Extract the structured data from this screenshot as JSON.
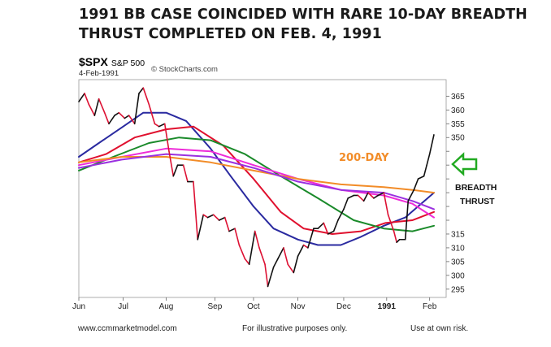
{
  "headline": {
    "line1": "1991 BB CASE COINCIDED WITH RARE 10-DAY BREADTH",
    "line2": "THRUST COMPLETED ON FEB. 4, 1991"
  },
  "chart_header": {
    "symbol": "$SPX",
    "name": "S&P 500",
    "credit": "© StockCharts.com",
    "date": "4-Feb-1991"
  },
  "annotations": {
    "ma200_label": "200-DAY",
    "breadth_line1": "BREADTH",
    "breadth_line2": "THRUST"
  },
  "footer": {
    "website": "www.ccmmarketmodel.com",
    "disclaimer": "For illustrative purposes only.",
    "risk": "Use at own risk."
  },
  "colors": {
    "price": "#111111",
    "price_down": "#dd1133",
    "ma200": "#f28c28",
    "arrow": "#22aa22",
    "annotation_orange": "#f28c28"
  },
  "chart_data": {
    "type": "line",
    "title": "$SPX S&P 500",
    "xlabel": "",
    "ylabel": "",
    "ylim": [
      292,
      371
    ],
    "y_ticks": [
      295,
      300,
      305,
      310,
      315,
      320,
      325,
      330,
      335,
      340,
      345,
      350,
      355,
      360,
      365
    ],
    "y_tick_labels": [
      "295",
      "300",
      "305",
      "310",
      "315",
      "",
      "",
      "",
      "",
      "",
      "",
      "350",
      "355",
      "360",
      "365"
    ],
    "x_domain": [
      "1990-06-01",
      "1991-02-08"
    ],
    "x_ticks": [
      {
        "label": "Jun",
        "date": "1990-06-01",
        "bold": false
      },
      {
        "label": "Jul",
        "date": "1990-07-02",
        "bold": false
      },
      {
        "label": "Aug",
        "date": "1990-08-01",
        "bold": false
      },
      {
        "label": "Sep",
        "date": "1990-09-04",
        "bold": false
      },
      {
        "label": "Oct",
        "date": "1990-10-01",
        "bold": false
      },
      {
        "label": "Nov",
        "date": "1990-11-01",
        "bold": false
      },
      {
        "label": "Dec",
        "date": "1990-12-03",
        "bold": false
      },
      {
        "label": "1991",
        "date": "1991-01-02",
        "bold": true
      },
      {
        "label": "Feb",
        "date": "1991-02-01",
        "bold": false
      }
    ],
    "price_series": {
      "name": "$SPX",
      "points": [
        [
          "1990-06-01",
          363
        ],
        [
          "1990-06-05",
          366
        ],
        [
          "1990-06-08",
          362
        ],
        [
          "1990-06-12",
          358
        ],
        [
          "1990-06-15",
          364
        ],
        [
          "1990-06-19",
          359
        ],
        [
          "1990-06-22",
          355
        ],
        [
          "1990-06-26",
          358
        ],
        [
          "1990-06-29",
          359
        ],
        [
          "1990-07-03",
          357
        ],
        [
          "1990-07-06",
          358
        ],
        [
          "1990-07-10",
          355
        ],
        [
          "1990-07-13",
          366
        ],
        [
          "1990-07-16",
          368
        ],
        [
          "1990-07-20",
          362
        ],
        [
          "1990-07-24",
          355
        ],
        [
          "1990-07-27",
          354
        ],
        [
          "1990-07-31",
          355
        ],
        [
          "1990-08-03",
          345
        ],
        [
          "1990-08-06",
          336
        ],
        [
          "1990-08-09",
          340
        ],
        [
          "1990-08-13",
          340
        ],
        [
          "1990-08-16",
          334
        ],
        [
          "1990-08-20",
          334
        ],
        [
          "1990-08-23",
          313
        ],
        [
          "1990-08-27",
          322
        ],
        [
          "1990-08-30",
          321
        ],
        [
          "1990-09-03",
          322
        ],
        [
          "1990-09-07",
          320
        ],
        [
          "1990-09-11",
          321
        ],
        [
          "1990-09-14",
          316
        ],
        [
          "1990-09-18",
          317
        ],
        [
          "1990-09-21",
          311
        ],
        [
          "1990-09-25",
          306
        ],
        [
          "1990-09-28",
          304
        ],
        [
          "1990-10-02",
          316
        ],
        [
          "1990-10-05",
          310
        ],
        [
          "1990-10-09",
          304
        ],
        [
          "1990-10-11",
          296
        ],
        [
          "1990-10-15",
          303
        ],
        [
          "1990-10-18",
          306
        ],
        [
          "1990-10-22",
          310
        ],
        [
          "1990-10-25",
          304
        ],
        [
          "1990-10-29",
          301
        ],
        [
          "1990-11-01",
          307
        ],
        [
          "1990-11-05",
          311
        ],
        [
          "1990-11-08",
          310
        ],
        [
          "1990-11-12",
          317
        ],
        [
          "1990-11-15",
          317
        ],
        [
          "1990-11-19",
          319
        ],
        [
          "1990-11-22",
          315
        ],
        [
          "1990-11-26",
          316
        ],
        [
          "1990-11-29",
          320
        ],
        [
          "1990-12-03",
          324
        ],
        [
          "1990-12-06",
          328
        ],
        [
          "1990-12-10",
          329
        ],
        [
          "1990-12-13",
          329
        ],
        [
          "1990-12-17",
          327
        ],
        [
          "1990-12-20",
          330
        ],
        [
          "1990-12-24",
          328
        ],
        [
          "1990-12-27",
          329
        ],
        [
          "1990-12-31",
          330
        ],
        [
          "1991-01-03",
          322
        ],
        [
          "1991-01-07",
          316
        ],
        [
          "1991-01-09",
          312
        ],
        [
          "1991-01-11",
          313
        ],
        [
          "1991-01-15",
          313
        ],
        [
          "1991-01-17",
          327
        ],
        [
          "1991-01-21",
          331
        ],
        [
          "1991-01-24",
          335
        ],
        [
          "1991-01-28",
          336
        ],
        [
          "1991-01-30",
          340
        ],
        [
          "1991-02-01",
          344
        ],
        [
          "1991-02-04",
          351
        ]
      ]
    },
    "moving_averages": [
      {
        "color": "#2a2aa0",
        "points": [
          [
            "1990-06-01",
            343
          ],
          [
            "1990-06-15",
            348
          ],
          [
            "1990-07-02",
            354
          ],
          [
            "1990-07-16",
            359
          ],
          [
            "1990-08-01",
            359
          ],
          [
            "1990-08-15",
            356
          ],
          [
            "1990-09-01",
            346
          ],
          [
            "1990-09-15",
            336
          ],
          [
            "1990-10-01",
            325
          ],
          [
            "1990-10-15",
            317
          ],
          [
            "1990-11-01",
            313
          ],
          [
            "1990-11-15",
            311
          ],
          [
            "1990-12-01",
            311
          ],
          [
            "1990-12-15",
            314
          ],
          [
            "1990-12-31",
            318
          ],
          [
            "1991-01-15",
            321
          ],
          [
            "1991-02-04",
            330
          ]
        ]
      },
      {
        "color": "#e0102e",
        "points": [
          [
            "1990-06-01",
            341
          ],
          [
            "1990-06-20",
            344
          ],
          [
            "1990-07-10",
            350
          ],
          [
            "1990-08-01",
            353
          ],
          [
            "1990-08-20",
            354
          ],
          [
            "1990-09-10",
            347
          ],
          [
            "1990-10-01",
            335
          ],
          [
            "1990-10-20",
            323
          ],
          [
            "1990-11-05",
            317
          ],
          [
            "1990-11-25",
            315
          ],
          [
            "1990-12-15",
            316
          ],
          [
            "1991-01-01",
            319
          ],
          [
            "1991-01-20",
            320
          ],
          [
            "1991-02-04",
            323
          ]
        ]
      },
      {
        "color": "#1a8a2a",
        "points": [
          [
            "1990-06-01",
            338
          ],
          [
            "1990-06-25",
            343
          ],
          [
            "1990-07-20",
            348
          ],
          [
            "1990-08-10",
            350
          ],
          [
            "1990-09-01",
            349
          ],
          [
            "1990-09-25",
            344
          ],
          [
            "1990-10-20",
            336
          ],
          [
            "1990-11-15",
            328
          ],
          [
            "1990-12-10",
            320
          ],
          [
            "1990-12-31",
            317
          ],
          [
            "1991-01-20",
            316
          ],
          [
            "1991-02-04",
            318
          ]
        ]
      },
      {
        "color": "#ee2bd8",
        "points": [
          [
            "1990-06-01",
            340
          ],
          [
            "1990-07-01",
            343
          ],
          [
            "1990-08-01",
            346
          ],
          [
            "1990-09-01",
            345
          ],
          [
            "1990-10-01",
            340
          ],
          [
            "1990-11-01",
            335
          ],
          [
            "1990-12-01",
            331
          ],
          [
            "1990-12-31",
            329
          ],
          [
            "1991-01-20",
            326
          ],
          [
            "1991-02-04",
            321
          ]
        ]
      },
      {
        "color": "#f28c28",
        "points": [
          [
            "1990-06-01",
            341
          ],
          [
            "1990-07-01",
            343
          ],
          [
            "1990-08-01",
            343
          ],
          [
            "1990-09-01",
            341
          ],
          [
            "1990-10-01",
            338
          ],
          [
            "1990-11-01",
            335
          ],
          [
            "1990-12-01",
            333
          ],
          [
            "1990-12-31",
            332
          ],
          [
            "1991-01-20",
            331
          ],
          [
            "1991-02-04",
            330
          ]
        ]
      },
      {
        "color": "#9a30e0",
        "points": [
          [
            "1990-06-01",
            339
          ],
          [
            "1990-07-01",
            342
          ],
          [
            "1990-08-01",
            344
          ],
          [
            "1990-09-01",
            343
          ],
          [
            "1990-10-01",
            339
          ],
          [
            "1990-11-01",
            334
          ],
          [
            "1990-12-01",
            331
          ],
          [
            "1990-12-31",
            330
          ],
          [
            "1991-01-20",
            327
          ],
          [
            "1991-02-04",
            324
          ]
        ]
      }
    ]
  }
}
